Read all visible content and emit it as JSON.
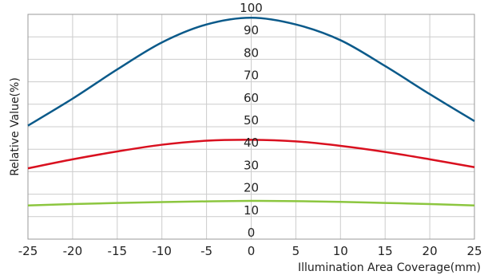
{
  "chart_data": {
    "type": "line",
    "xlabel": "Illumination Area Coverage(mm)",
    "ylabel": "Relative Value(%)",
    "xlim": [
      -25,
      25
    ],
    "ylim": [
      0,
      100
    ],
    "x_ticks": [
      -25,
      -20,
      -15,
      -10,
      -5,
      0,
      5,
      10,
      15,
      20,
      25
    ],
    "y_ticks": [
      0,
      10,
      20,
      30,
      40,
      50,
      60,
      70,
      80,
      90,
      100
    ],
    "grid": true,
    "colors": [
      "#0b5a8a",
      "#d9101f",
      "#8cc63f"
    ],
    "series": [
      {
        "x": [
          -25,
          -20,
          -15,
          -10,
          -5,
          0,
          5,
          10,
          15,
          20,
          25
        ],
        "values": [
          50.5,
          62.5,
          75.5,
          87.5,
          95.5,
          98.5,
          95.5,
          88.5,
          77.0,
          64.5,
          52.5
        ]
      },
      {
        "x": [
          -25,
          -20,
          -15,
          -10,
          -5,
          0,
          5,
          10,
          15,
          20,
          25
        ],
        "values": [
          31.5,
          35.5,
          39.0,
          42.0,
          43.8,
          44.2,
          43.5,
          41.5,
          38.8,
          35.5,
          32.0
        ]
      },
      {
        "x": [
          -25,
          -20,
          -15,
          -10,
          -5,
          0,
          5,
          10,
          15,
          20,
          25
        ],
        "values": [
          15.0,
          15.6,
          16.1,
          16.5,
          16.8,
          17.0,
          16.9,
          16.6,
          16.1,
          15.6,
          15.0
        ]
      }
    ]
  }
}
